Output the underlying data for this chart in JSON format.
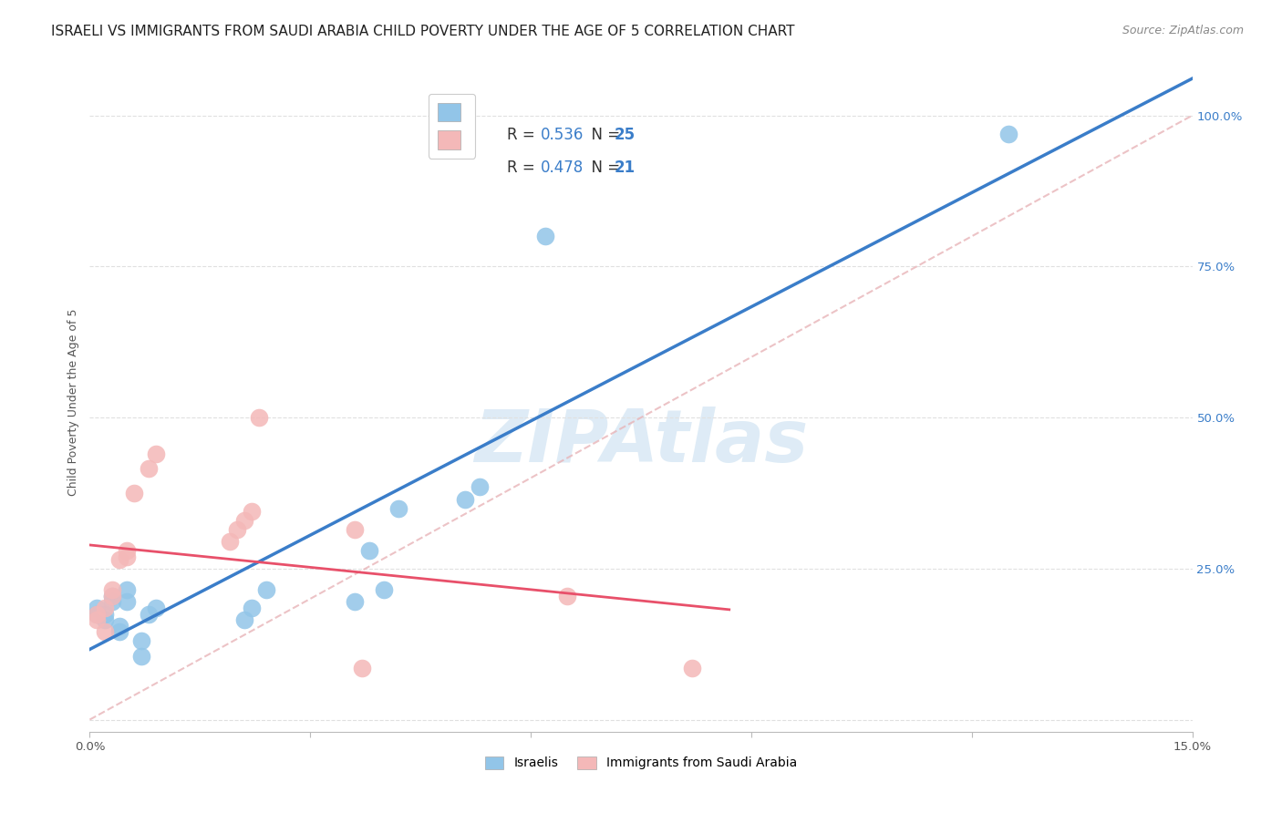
{
  "title": "ISRAELI VS IMMIGRANTS FROM SAUDI ARABIA CHILD POVERTY UNDER THE AGE OF 5 CORRELATION CHART",
  "source": "Source: ZipAtlas.com",
  "ylabel": "Child Poverty Under the Age of 5",
  "watermark": "ZIPAtlas",
  "xlim": [
    0.0,
    0.15
  ],
  "ylim": [
    -0.02,
    1.07
  ],
  "xticks": [
    0.0,
    0.03,
    0.06,
    0.09,
    0.12,
    0.15
  ],
  "xticklabels": [
    "0.0%",
    "",
    "",
    "",
    "",
    "15.0%"
  ],
  "yticks": [
    0.0,
    0.25,
    0.5,
    0.75,
    1.0
  ],
  "yticklabels": [
    "",
    "25.0%",
    "50.0%",
    "75.0%",
    "100.0%"
  ],
  "legend_r1": "0.536",
  "legend_n1": "25",
  "legend_r2": "0.478",
  "legend_n2": "21",
  "label1": "Israelis",
  "label2": "Immigrants from Saudi Arabia",
  "color1": "#92c5e8",
  "color2": "#f4b8b8",
  "line_color1": "#3a7dc9",
  "line_color2": "#e8506a",
  "ref_line_color": "#e8b4b8",
  "israelis_x": [
    0.001,
    0.001,
    0.002,
    0.002,
    0.003,
    0.003,
    0.004,
    0.004,
    0.005,
    0.005,
    0.007,
    0.007,
    0.008,
    0.009,
    0.021,
    0.022,
    0.024,
    0.036,
    0.038,
    0.04,
    0.042,
    0.051,
    0.053,
    0.062,
    0.125
  ],
  "israelis_y": [
    0.175,
    0.185,
    0.165,
    0.175,
    0.195,
    0.205,
    0.145,
    0.155,
    0.195,
    0.215,
    0.105,
    0.13,
    0.175,
    0.185,
    0.165,
    0.185,
    0.215,
    0.195,
    0.28,
    0.215,
    0.35,
    0.365,
    0.385,
    0.8,
    0.97
  ],
  "saudi_x": [
    0.001,
    0.001,
    0.002,
    0.002,
    0.003,
    0.003,
    0.004,
    0.005,
    0.005,
    0.006,
    0.008,
    0.009,
    0.019,
    0.02,
    0.021,
    0.022,
    0.023,
    0.036,
    0.037,
    0.065,
    0.082
  ],
  "saudi_y": [
    0.165,
    0.175,
    0.145,
    0.185,
    0.205,
    0.215,
    0.265,
    0.27,
    0.28,
    0.375,
    0.415,
    0.44,
    0.295,
    0.315,
    0.33,
    0.345,
    0.5,
    0.315,
    0.085,
    0.205,
    0.085
  ],
  "bg_color": "#ffffff",
  "grid_color": "#e0e0e0",
  "title_fontsize": 11,
  "axis_fontsize": 9,
  "tick_fontsize": 9.5,
  "legend_fontsize": 12,
  "source_fontsize": 9
}
